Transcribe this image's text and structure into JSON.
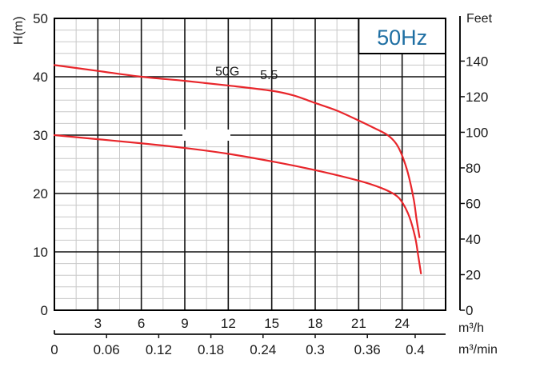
{
  "chart_data": {
    "type": "line",
    "title": "",
    "frequency_badge": "50Hz",
    "xlabel_primary": "m³/h",
    "xlabel_secondary": "m³/min",
    "ylabel_left": "H(m)",
    "ylabel_right": "Feet",
    "xlim": [
      0,
      27
    ],
    "ylim": [
      0,
      50
    ],
    "y2lim": [
      0,
      164
    ],
    "grid": true,
    "x_ticks_primary": [
      3,
      6,
      9,
      12,
      15,
      18,
      21,
      24
    ],
    "x_ticks_secondary": [
      "0",
      "0.06",
      "0.12",
      "0.18",
      "0.24",
      "0.3",
      "0.36",
      "0.4"
    ],
    "x_ticks_secondary_positions": [
      0,
      3.6,
      7.2,
      10.8,
      14.4,
      18,
      21.6,
      24.9
    ],
    "y_ticks_left": [
      0,
      10,
      20,
      30,
      40,
      50
    ],
    "y_ticks_right": [
      0,
      20,
      40,
      60,
      80,
      100,
      120,
      140
    ],
    "annotations": [
      {
        "text": "50G",
        "x": 11.1,
        "y": 40.2
      },
      {
        "text": "5.5",
        "x": 14.2,
        "y": 39.6
      }
    ],
    "series": [
      {
        "name": "50G 5.5 (upper)",
        "color": "#e8262b",
        "x": [
          0,
          3,
          6,
          9,
          12,
          15,
          16.5,
          18,
          19.5,
          21,
          22,
          23,
          23.6,
          24,
          24.4,
          24.8,
          25.0,
          25.2
        ],
        "y": [
          42,
          41,
          40,
          39.3,
          38.5,
          37.6,
          36.8,
          35.5,
          34.2,
          32.5,
          31.3,
          30,
          28.5,
          26.5,
          23.5,
          19,
          15.5,
          12.5
        ]
      },
      {
        "name": "50G 5.5 (lower)",
        "color": "#e8262b",
        "x": [
          0,
          3,
          6,
          9,
          12,
          15,
          18,
          21,
          22.5,
          23.5,
          24,
          24.5,
          24.9,
          25.1,
          25.3
        ],
        "y": [
          30,
          29.3,
          28.6,
          27.8,
          26.8,
          25.5,
          24,
          22.2,
          21,
          19.8,
          18.5,
          16,
          12.5,
          9.5,
          6.3
        ]
      }
    ]
  }
}
